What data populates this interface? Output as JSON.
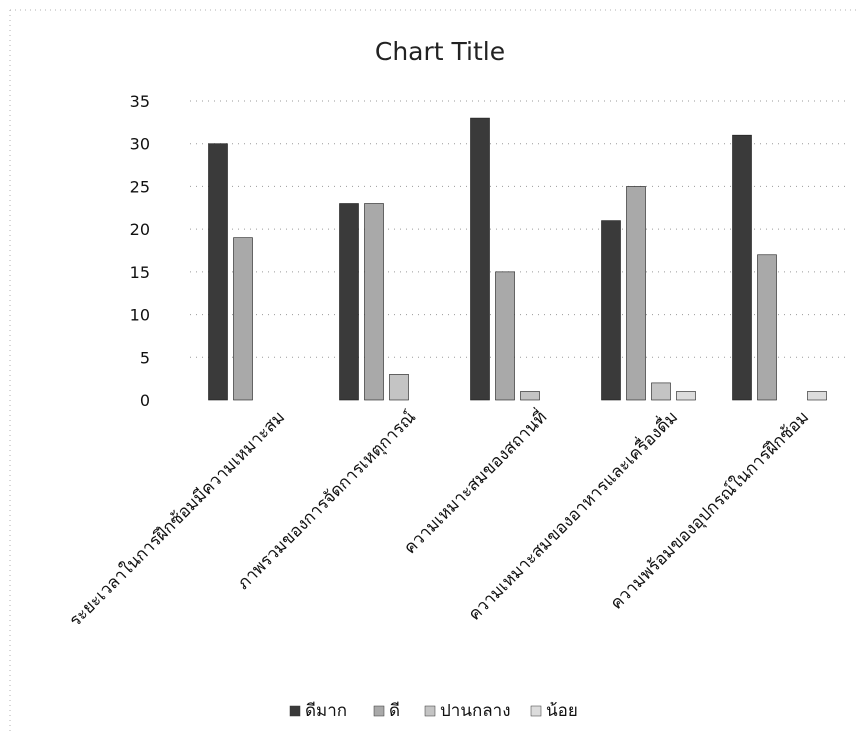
{
  "chart_data": {
    "type": "bar",
    "title": "Chart Title",
    "categories": [
      "ระยะเวลาในการฝึกซ้อมมีความเหมาะสม",
      "ภาพรวมของการจัดการเหตุการณ์",
      "ความเหมาะสมของสถานที่",
      "ความเหมาะสมของอาหารและเครื่องดื่ม",
      "ความพร้อมของอุปกรณ์ในการฝึกซ้อม"
    ],
    "series": [
      {
        "name": "ดีมาก",
        "values": [
          30,
          23,
          33,
          21,
          31
        ],
        "color": "#3a3a3a"
      },
      {
        "name": "ดี",
        "values": [
          19,
          23,
          15,
          25,
          17
        ],
        "color": "#a9a9a9"
      },
      {
        "name": "ปานกลาง",
        "values": [
          0,
          3,
          1,
          2,
          0
        ],
        "color": "#c4c4c4"
      },
      {
        "name": "น้อย",
        "values": [
          0,
          0,
          0,
          1,
          1
        ],
        "color": "#dcdcdc"
      }
    ],
    "ylim": [
      0,
      35
    ],
    "yticks": [
      "0",
      "5",
      "10",
      "15",
      "20",
      "25",
      "30",
      "35"
    ],
    "grid": true,
    "legend_position": "bottom"
  }
}
